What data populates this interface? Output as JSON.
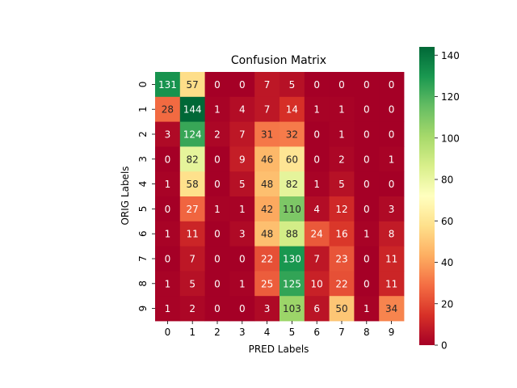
{
  "chart_data": {
    "type": "heatmap",
    "title": "Confusion Matrix",
    "xlabel": "PRED Labels",
    "ylabel": "ORIG Labels",
    "x_categories": [
      "0",
      "1",
      "2",
      "3",
      "4",
      "5",
      "6",
      "7",
      "8",
      "9"
    ],
    "y_categories": [
      "0",
      "1",
      "2",
      "3",
      "4",
      "5",
      "6",
      "7",
      "8",
      "9"
    ],
    "values": [
      [
        131,
        57,
        0,
        0,
        7,
        5,
        0,
        0,
        0,
        0
      ],
      [
        28,
        144,
        1,
        4,
        7,
        14,
        1,
        1,
        0,
        0
      ],
      [
        3,
        124,
        2,
        7,
        31,
        32,
        0,
        1,
        0,
        0
      ],
      [
        0,
        82,
        0,
        9,
        46,
        60,
        0,
        2,
        0,
        1
      ],
      [
        1,
        58,
        0,
        5,
        48,
        82,
        1,
        5,
        0,
        0
      ],
      [
        0,
        27,
        1,
        1,
        42,
        110,
        4,
        12,
        0,
        3
      ],
      [
        1,
        11,
        0,
        3,
        48,
        88,
        24,
        16,
        1,
        8
      ],
      [
        0,
        7,
        0,
        0,
        22,
        130,
        7,
        23,
        0,
        11
      ],
      [
        1,
        5,
        0,
        1,
        25,
        125,
        10,
        22,
        0,
        11
      ],
      [
        1,
        2,
        0,
        0,
        3,
        103,
        6,
        50,
        1,
        34
      ]
    ],
    "colormap": "RdYlGn",
    "value_range": [
      0,
      144
    ],
    "colorbar_ticks": [
      0,
      20,
      40,
      60,
      80,
      100,
      120,
      140
    ],
    "annotated": true
  }
}
